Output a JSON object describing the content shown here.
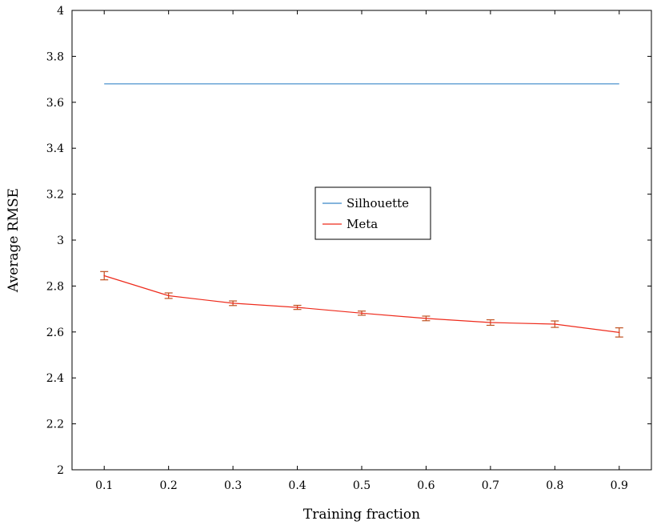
{
  "chart_data": {
    "type": "line",
    "xlabel": "Training fraction",
    "ylabel": "Average RMSE",
    "xlim": [
      0.05,
      0.95
    ],
    "ylim": [
      2,
      4
    ],
    "x_ticks": [
      "0.1",
      "0.2",
      "0.3",
      "0.4",
      "0.5",
      "0.6",
      "0.7",
      "0.8",
      "0.9"
    ],
    "y_ticks": [
      "2",
      "2.2",
      "2.4",
      "2.6",
      "2.8",
      "3",
      "3.2",
      "3.4",
      "3.6",
      "3.8",
      "4"
    ],
    "grid": false,
    "legend_position": "center",
    "series": [
      {
        "name": "Silhouette",
        "color": "#3a87c8",
        "x": [
          0.1,
          0.9
        ],
        "y": [
          3.68,
          3.68
        ]
      },
      {
        "name": "Meta",
        "color": "#ee2a1b",
        "error_bar_color": "#c0501f",
        "x": [
          0.1,
          0.2,
          0.3,
          0.4,
          0.5,
          0.6,
          0.7,
          0.8,
          0.9
        ],
        "y": [
          2.845,
          2.758,
          2.725,
          2.707,
          2.682,
          2.659,
          2.641,
          2.634,
          2.598
        ],
        "error": [
          0.018,
          0.012,
          0.01,
          0.009,
          0.009,
          0.01,
          0.012,
          0.014,
          0.02
        ]
      }
    ]
  }
}
